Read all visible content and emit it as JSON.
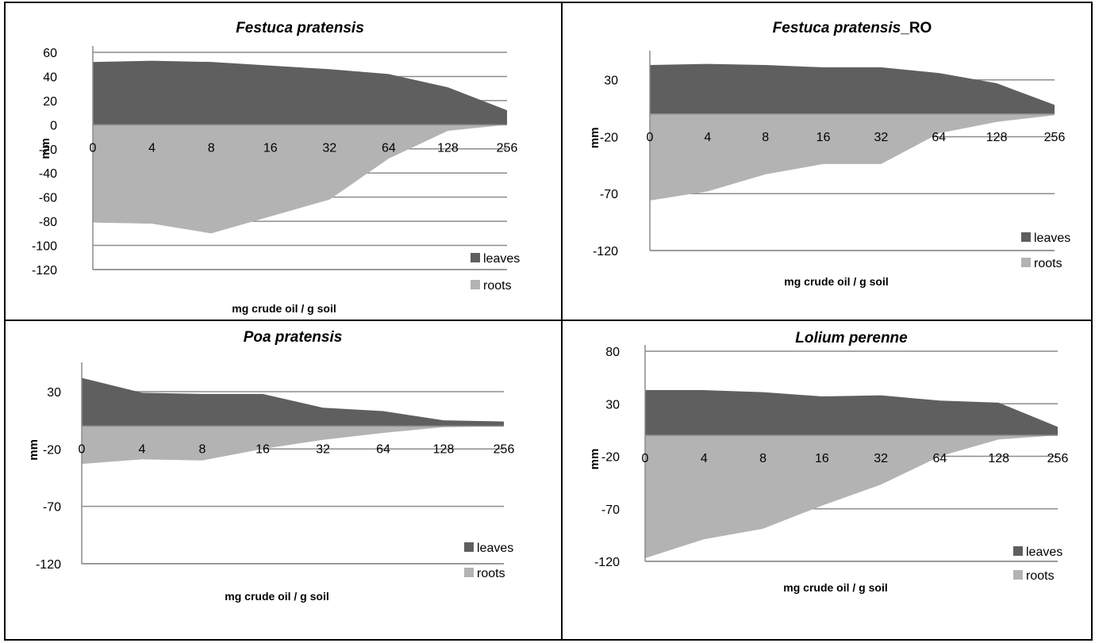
{
  "colors": {
    "leaves": "#5f5f5f",
    "roots": "#b3b3b3",
    "grid": "#8c8c8c",
    "frame": "#000000"
  },
  "chart_data": [
    {
      "type": "area",
      "title": "Festuca pratensis",
      "title_suffix": "",
      "xlabel": "mg crude oil / g soil",
      "ylabel": "mm",
      "categories": [
        "0",
        "4",
        "8",
        "16",
        "32",
        "64",
        "128",
        "256"
      ],
      "yticks": [
        60,
        40,
        20,
        0,
        -20,
        -40,
        -60,
        -80,
        -100,
        -120
      ],
      "ylim": [
        -120,
        60
      ],
      "legend": "bottom-right",
      "grid": true,
      "series": [
        {
          "name": "leaves",
          "values": [
            52,
            53,
            52,
            49,
            46,
            42,
            31,
            12
          ]
        },
        {
          "name": "roots",
          "values": [
            -81,
            -82,
            -90,
            -76,
            -62,
            -28,
            -5,
            0
          ]
        }
      ]
    },
    {
      "type": "area",
      "title": "Festuca pratensis",
      "title_suffix": "_RO",
      "xlabel": "mg crude oil / g soil",
      "ylabel": "mm",
      "categories": [
        "0",
        "4",
        "8",
        "16",
        "32",
        "64",
        "128",
        "256"
      ],
      "yticks": [
        30,
        -20,
        -70,
        -120
      ],
      "ylim": [
        -120,
        50
      ],
      "legend": "bottom-right",
      "grid": true,
      "series": [
        {
          "name": "leaves",
          "values": [
            43,
            44,
            43,
            41,
            41,
            36,
            27,
            8
          ]
        },
        {
          "name": "roots",
          "values": [
            -76,
            -68,
            -53,
            -44,
            -44,
            -17,
            -7,
            -1
          ]
        }
      ]
    },
    {
      "type": "area",
      "title": "Poa pratensis",
      "title_suffix": "",
      "xlabel": "mg crude oil / g soil",
      "ylabel": "mm",
      "categories": [
        "0",
        "4",
        "8",
        "16",
        "32",
        "64",
        "128",
        "256"
      ],
      "yticks": [
        30,
        -20,
        -70,
        -120
      ],
      "ylim": [
        -120,
        50
      ],
      "legend": "bottom-right",
      "grid": true,
      "series": [
        {
          "name": "leaves",
          "values": [
            42,
            29,
            28,
            28,
            16,
            13,
            5,
            4
          ]
        },
        {
          "name": "roots",
          "values": [
            -33,
            -29,
            -30,
            -20,
            -12,
            -6,
            -1,
            0
          ]
        }
      ]
    },
    {
      "type": "area",
      "title": "Lolium perenne",
      "title_suffix": "",
      "xlabel": "mg crude oil / g soil",
      "ylabel": "mm",
      "categories": [
        "0",
        "4",
        "8",
        "16",
        "32",
        "64",
        "128",
        "256"
      ],
      "yticks": [
        80,
        30,
        -20,
        -70,
        -120
      ],
      "ylim": [
        -120,
        80
      ],
      "legend": "bottom-right",
      "grid": true,
      "series": [
        {
          "name": "leaves",
          "values": [
            43,
            43,
            41,
            37,
            38,
            33,
            31,
            8
          ]
        },
        {
          "name": "roots",
          "values": [
            -117,
            -99,
            -89,
            -67,
            -47,
            -20,
            -4,
            0
          ]
        }
      ]
    }
  ]
}
